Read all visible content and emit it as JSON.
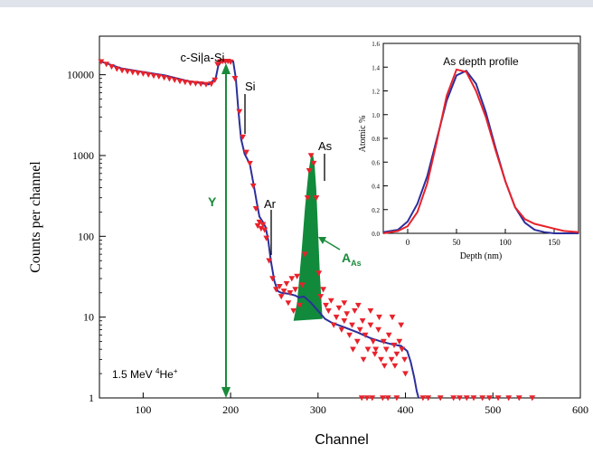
{
  "chart_data": [
    {
      "id": "main",
      "type": "scatter",
      "xlabel": "Channel",
      "ylabel": "Counts per channel",
      "x_ticks": [
        "100",
        "200",
        "300",
        "400",
        "500",
        "600"
      ],
      "y_ticks": [
        "1",
        "10",
        "100",
        "1000",
        "10000"
      ],
      "xlim": [
        50,
        600
      ],
      "ylim": [
        1,
        30000
      ],
      "yscale": "log",
      "annotations": {
        "csi_asi": "c-Si|a-Si",
        "si": "Si",
        "ar": "Ar",
        "as": "As",
        "y_label": "Y",
        "area_main": "A",
        "area_sub": "As",
        "beam_prefix": "1.5 MeV ",
        "beam_sup": "4",
        "beam_mid": "He",
        "beam_sup2": "+"
      },
      "colors": {
        "fit_line": "#2b2f9b",
        "data_markers": "#e8222b",
        "area_fill": "#118a3c",
        "arrow": "#1a8a3a"
      },
      "fit_curve": [
        [
          50,
          14800
        ],
        [
          75,
          12000
        ],
        [
          100,
          10800
        ],
        [
          125,
          9800
        ],
        [
          150,
          8400
        ],
        [
          175,
          7600
        ],
        [
          183,
          9000
        ],
        [
          186,
          13000
        ],
        [
          190,
          14600
        ],
        [
          200,
          14700
        ],
        [
          203,
          14600
        ],
        [
          206,
          9000
        ],
        [
          209,
          3500
        ],
        [
          212,
          1600
        ],
        [
          216,
          1050
        ],
        [
          222,
          780
        ],
        [
          227,
          400
        ],
        [
          230,
          260
        ],
        [
          233,
          175
        ],
        [
          237,
          150
        ],
        [
          240,
          130
        ],
        [
          243,
          90
        ],
        [
          246,
          50
        ],
        [
          250,
          28
        ],
        [
          254,
          21
        ],
        [
          258,
          20
        ],
        [
          266,
          19.5
        ],
        [
          274,
          18.5
        ],
        [
          278,
          17.5
        ],
        [
          284,
          18
        ],
        [
          292,
          15
        ],
        [
          300,
          12
        ],
        [
          308,
          9.5
        ],
        [
          316,
          8.5
        ],
        [
          330,
          7.5
        ],
        [
          345,
          6.5
        ],
        [
          360,
          5.5
        ],
        [
          372,
          5
        ],
        [
          385,
          4.6
        ],
        [
          395,
          4.4
        ],
        [
          402,
          3.8
        ],
        [
          406,
          2.8
        ],
        [
          410,
          1.8
        ],
        [
          413,
          1.2
        ],
        [
          415,
          1
        ]
      ],
      "as_peak": [
        [
          272,
          9
        ],
        [
          276,
          15
        ],
        [
          281,
          60
        ],
        [
          285,
          220
        ],
        [
          289,
          620
        ],
        [
          292,
          1000
        ],
        [
          294,
          1050
        ],
        [
          296,
          800
        ],
        [
          298,
          380
        ],
        [
          300,
          120
        ],
        [
          302,
          35
        ],
        [
          305,
          9.5
        ]
      ],
      "data_points": [
        [
          52,
          14500
        ],
        [
          58,
          13500
        ],
        [
          64,
          12600
        ],
        [
          70,
          11800
        ],
        [
          76,
          11300
        ],
        [
          82,
          11000
        ],
        [
          88,
          10700
        ],
        [
          94,
          10500
        ],
        [
          100,
          10300
        ],
        [
          106,
          10000
        ],
        [
          112,
          9700
        ],
        [
          118,
          9500
        ],
        [
          124,
          9200
        ],
        [
          130,
          8900
        ],
        [
          136,
          8600
        ],
        [
          142,
          8300
        ],
        [
          148,
          8100
        ],
        [
          154,
          7900
        ],
        [
          160,
          7800
        ],
        [
          166,
          7700
        ],
        [
          172,
          7600
        ],
        [
          178,
          7700
        ],
        [
          182,
          8600
        ],
        [
          185,
          13500
        ],
        [
          188,
          14500
        ],
        [
          191,
          14700
        ],
        [
          194,
          14600
        ],
        [
          197,
          14700
        ],
        [
          200,
          14400
        ],
        [
          205,
          9000
        ],
        [
          210,
          3500
        ],
        [
          214,
          1700
        ],
        [
          218,
          1100
        ],
        [
          222,
          800
        ],
        [
          226,
          420
        ],
        [
          229,
          220
        ],
        [
          231,
          135
        ],
        [
          233,
          150
        ],
        [
          235,
          125
        ],
        [
          237,
          140
        ],
        [
          239,
          120
        ],
        [
          241,
          95
        ],
        [
          244,
          50
        ],
        [
          248,
          30
        ],
        [
          252,
          22
        ],
        [
          256,
          24
        ],
        [
          258,
          18
        ],
        [
          261,
          21
        ],
        [
          264,
          26
        ],
        [
          266,
          15
        ],
        [
          268,
          20
        ],
        [
          270,
          30
        ],
        [
          272,
          12
        ],
        [
          274,
          22
        ],
        [
          276,
          32
        ],
        [
          279,
          14
        ],
        [
          282,
          25
        ],
        [
          285,
          60
        ],
        [
          288,
          300
        ],
        [
          290,
          650
        ],
        [
          292,
          1000
        ],
        [
          295,
          800
        ],
        [
          298,
          300
        ],
        [
          301,
          35
        ],
        [
          303,
          18
        ],
        [
          306,
          22
        ],
        [
          309,
          14
        ],
        [
          312,
          12
        ],
        [
          315,
          16
        ],
        [
          318,
          8
        ],
        [
          321,
          10
        ],
        [
          324,
          13
        ],
        [
          327,
          7
        ],
        [
          330,
          9
        ],
        [
          333,
          11
        ],
        [
          336,
          6
        ],
        [
          339,
          8
        ],
        [
          342,
          12
        ],
        [
          345,
          5
        ],
        [
          348,
          7
        ],
        [
          351,
          9
        ],
        [
          354,
          6
        ],
        [
          357,
          4
        ],
        [
          360,
          8
        ],
        [
          363,
          5
        ],
        [
          366,
          4
        ],
        [
          369,
          7
        ],
        [
          372,
          3
        ],
        [
          375,
          5
        ],
        [
          378,
          4
        ],
        [
          381,
          6
        ],
        [
          384,
          3
        ],
        [
          387,
          4.5
        ],
        [
          390,
          3.5
        ],
        [
          393,
          5
        ],
        [
          396,
          4
        ],
        [
          399,
          3
        ],
        [
          330,
          15
        ],
        [
          346,
          14
        ],
        [
          370,
          10
        ],
        [
          385,
          10
        ],
        [
          395,
          8
        ],
        [
          360,
          12
        ],
        [
          340,
          4
        ],
        [
          352,
          3
        ],
        [
          365,
          3.5
        ],
        [
          376,
          2.5
        ],
        [
          388,
          2.5
        ],
        [
          400,
          2
        ],
        [
          350,
          1
        ],
        [
          356,
          1
        ],
        [
          362,
          1
        ],
        [
          374,
          1
        ],
        [
          380,
          1
        ],
        [
          390,
          1
        ],
        [
          420,
          1
        ],
        [
          426,
          1
        ],
        [
          440,
          1
        ],
        [
          455,
          1
        ],
        [
          462,
          1
        ],
        [
          470,
          1
        ],
        [
          478,
          1
        ],
        [
          488,
          1
        ],
        [
          496,
          1
        ],
        [
          506,
          1
        ],
        [
          518,
          1
        ],
        [
          530,
          1
        ],
        [
          545,
          1
        ]
      ]
    },
    {
      "id": "inset",
      "type": "line",
      "title": "As depth profile",
      "xlabel": "Depth (nm)",
      "ylabel": "Atomic %",
      "x_ticks": [
        "0",
        "50",
        "100",
        "150"
      ],
      "y_ticks": [
        "0.0",
        "0.2",
        "0.4",
        "0.6",
        "0.8",
        "1.0",
        "1.2",
        "1.4",
        "1.6"
      ],
      "xlim": [
        -25,
        175
      ],
      "ylim": [
        0,
        1.6
      ],
      "series": [
        {
          "color": "#2b2f9b",
          "x": [
            -25,
            -10,
            0,
            10,
            20,
            30,
            40,
            50,
            60,
            70,
            80,
            90,
            100,
            110,
            120,
            130,
            140,
            150,
            160,
            175
          ],
          "y": [
            0.01,
            0.03,
            0.1,
            0.25,
            0.48,
            0.8,
            1.12,
            1.33,
            1.37,
            1.26,
            1.02,
            0.72,
            0.44,
            0.22,
            0.09,
            0.03,
            0.01,
            0.0,
            0.0,
            0.0
          ]
        },
        {
          "color": "#e8222b",
          "x": [
            -25,
            -10,
            0,
            10,
            20,
            30,
            40,
            50,
            60,
            70,
            80,
            90,
            100,
            110,
            120,
            130,
            140,
            150,
            160,
            175
          ],
          "y": [
            0.0,
            0.02,
            0.06,
            0.18,
            0.42,
            0.78,
            1.16,
            1.38,
            1.36,
            1.2,
            0.98,
            0.7,
            0.44,
            0.22,
            0.12,
            0.08,
            0.06,
            0.04,
            0.02,
            0.01
          ]
        }
      ]
    }
  ]
}
